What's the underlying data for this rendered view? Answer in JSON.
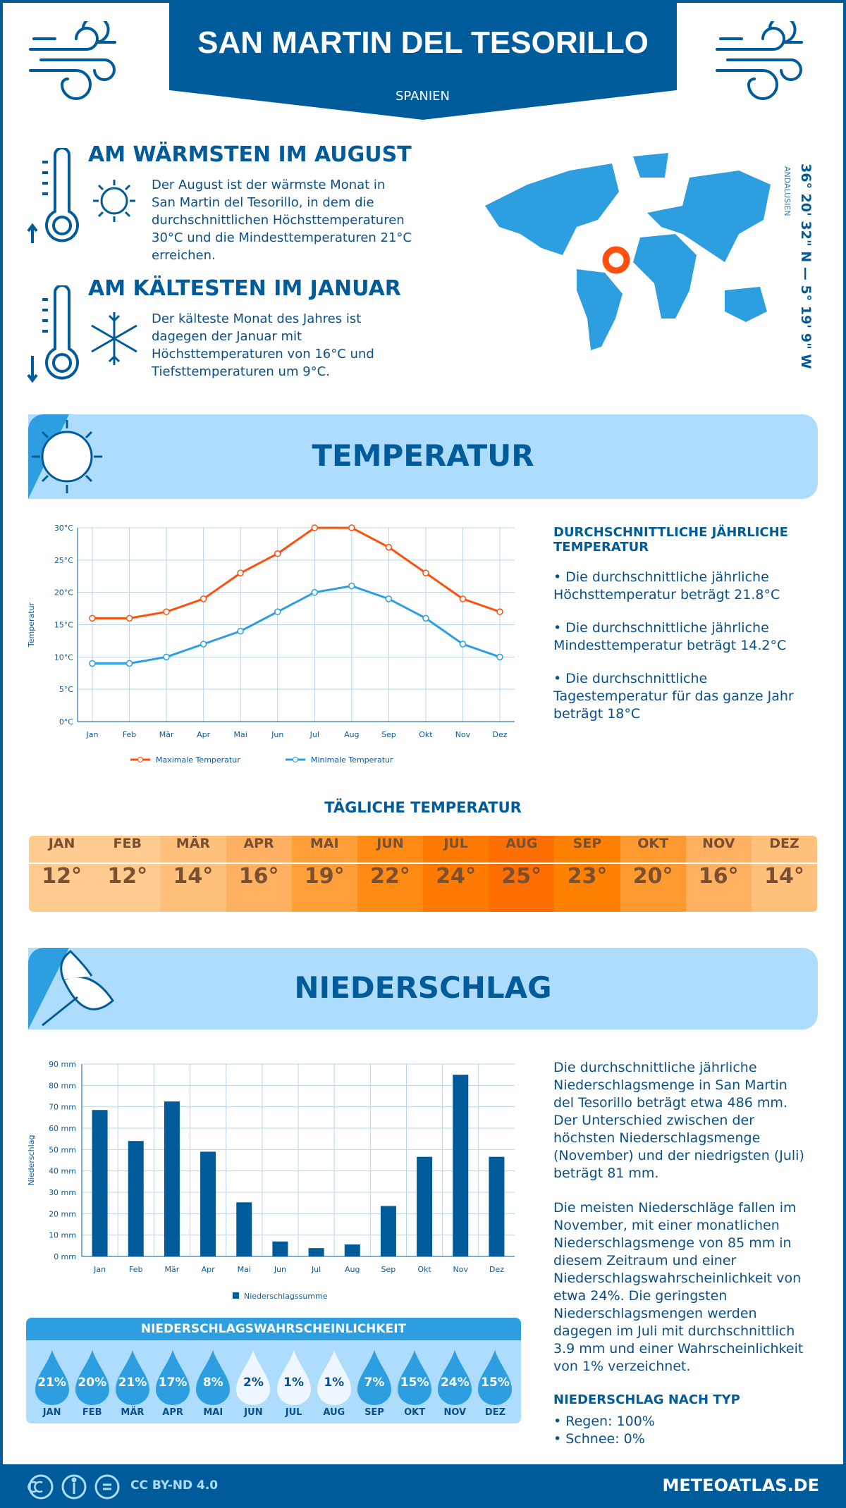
{
  "header": {
    "title": "SAN MARTIN DEL TESORILLO",
    "country": "SPANIEN"
  },
  "coords": {
    "text": "36° 20' 32\" N — 5° 19' 9\" W",
    "region": "ANDALUSIEN"
  },
  "warmest": {
    "title": "AM WÄRMSTEN IM AUGUST",
    "text": "Der August ist der wärmste Monat in San Martin del Tesorillo, in dem die durchschnittlichen Höchsttemperaturen 30°C und die Mindesttemperaturen 21°C erreichen."
  },
  "coldest": {
    "title": "AM KÄLTESTEN IM JANUAR",
    "text": "Der kälteste Monat des Jahres ist dagegen der Januar mit Höchsttemperaturen von 16°C und Tiefsttemperaturen um 9°C."
  },
  "temp_section": {
    "title": "TEMPERATUR",
    "avg_heading": "DURCHSCHNITTLICHE JÄHRLICHE TEMPERATUR",
    "bullets": [
      "• Die durchschnittliche jährliche Höchsttemperatur beträgt 21.8°C",
      "• Die durchschnittliche jährliche Mindesttemperatur beträgt 14.2°C",
      "• Die durchschnittliche Tagestemperatur für das ganze Jahr beträgt 18°C"
    ]
  },
  "daily": {
    "title": "TÄGLICHE TEMPERATUR",
    "months": [
      "JAN",
      "FEB",
      "MÄR",
      "APR",
      "MAI",
      "JUN",
      "JUL",
      "AUG",
      "SEP",
      "OKT",
      "NOV",
      "DEZ"
    ],
    "values": [
      "12°",
      "12°",
      "14°",
      "16°",
      "19°",
      "22°",
      "24°",
      "25°",
      "23°",
      "20°",
      "16°",
      "14°"
    ],
    "colors": [
      "#ffcb8e",
      "#ffcb8e",
      "#ffc07c",
      "#ffb060",
      "#ff9f3a",
      "#ff8a14",
      "#ff7a00",
      "#ff6e00",
      "#ff8100",
      "#ff9a30",
      "#ffb060",
      "#ffc07c"
    ]
  },
  "precip_section": {
    "title": "NIEDERSCHLAG",
    "p1": "Die durchschnittliche jährliche Niederschlagsmenge in San Martin del Tesorillo beträgt etwa 486 mm. Der Unterschied zwischen der höchsten Niederschlagsmenge (November) und der niedrigsten (Juli) beträgt 81 mm.",
    "p2": "Die meisten Niederschläge fallen im November, mit einer monatlichen Niederschlagsmenge von 85 mm in diesem Zeitraum und einer Niederschlagswahrscheinlichkeit von etwa 24%. Die geringsten Niederschlagsmengen werden dagegen im Juli mit durchschnittlich 3.9 mm und einer Wahrscheinlichkeit von 1% verzeichnet.",
    "type_heading": "NIEDERSCHLAG NACH TYP",
    "types": [
      "• Regen: 100%",
      "• Schnee: 0%"
    ]
  },
  "probability": {
    "title": "NIEDERSCHLAGSWAHRSCHEINLICHKEIT",
    "months": [
      "JAN",
      "FEB",
      "MÄR",
      "APR",
      "MAI",
      "JUN",
      "JUL",
      "AUG",
      "SEP",
      "OKT",
      "NOV",
      "DEZ"
    ],
    "values": [
      "21%",
      "20%",
      "21%",
      "17%",
      "8%",
      "2%",
      "1%",
      "1%",
      "7%",
      "15%",
      "24%",
      "15%"
    ]
  },
  "footer": {
    "license": "CC BY-ND 4.0",
    "site": "METEOATLAS.DE"
  },
  "chart_data": [
    {
      "type": "line",
      "categories": [
        "Jan",
        "Feb",
        "Mär",
        "Apr",
        "Mai",
        "Jun",
        "Jul",
        "Aug",
        "Sep",
        "Okt",
        "Nov",
        "Dez"
      ],
      "ylabel": "Temperatur",
      "ylim": [
        0,
        30
      ],
      "yticks": [
        "0°C",
        "5°C",
        "10°C",
        "15°C",
        "20°C",
        "25°C",
        "30°C"
      ],
      "grid": true,
      "legend": "bottom",
      "series": [
        {
          "name": "Maximale Temperatur",
          "color": "#ff4f0f",
          "values": [
            16,
            16,
            17,
            19,
            23,
            26,
            30,
            30,
            27,
            23,
            19,
            17
          ]
        },
        {
          "name": "Minimale Temperatur",
          "color": "#2d9ee0",
          "values": [
            9,
            9,
            10,
            12,
            14,
            17,
            20,
            21,
            19,
            16,
            12,
            10
          ]
        }
      ]
    },
    {
      "type": "bar",
      "categories": [
        "Jan",
        "Feb",
        "Mär",
        "Apr",
        "Mai",
        "Jun",
        "Jul",
        "Aug",
        "Sep",
        "Okt",
        "Nov",
        "Dez"
      ],
      "ylabel": "Niederschlag",
      "ylim": [
        0,
        90
      ],
      "yticks": [
        "0 mm",
        "10 mm",
        "20 mm",
        "30 mm",
        "40 mm",
        "50 mm",
        "60 mm",
        "70 mm",
        "80 mm",
        "90 mm"
      ],
      "grid": true,
      "legend": "bottom",
      "series": [
        {
          "name": "Niederschlagssumme",
          "color": "#005b9a",
          "values": [
            68.5,
            54,
            72.5,
            49,
            25.3,
            7,
            3.9,
            5.6,
            23.6,
            46.6,
            85,
            46.6
          ]
        }
      ]
    }
  ]
}
